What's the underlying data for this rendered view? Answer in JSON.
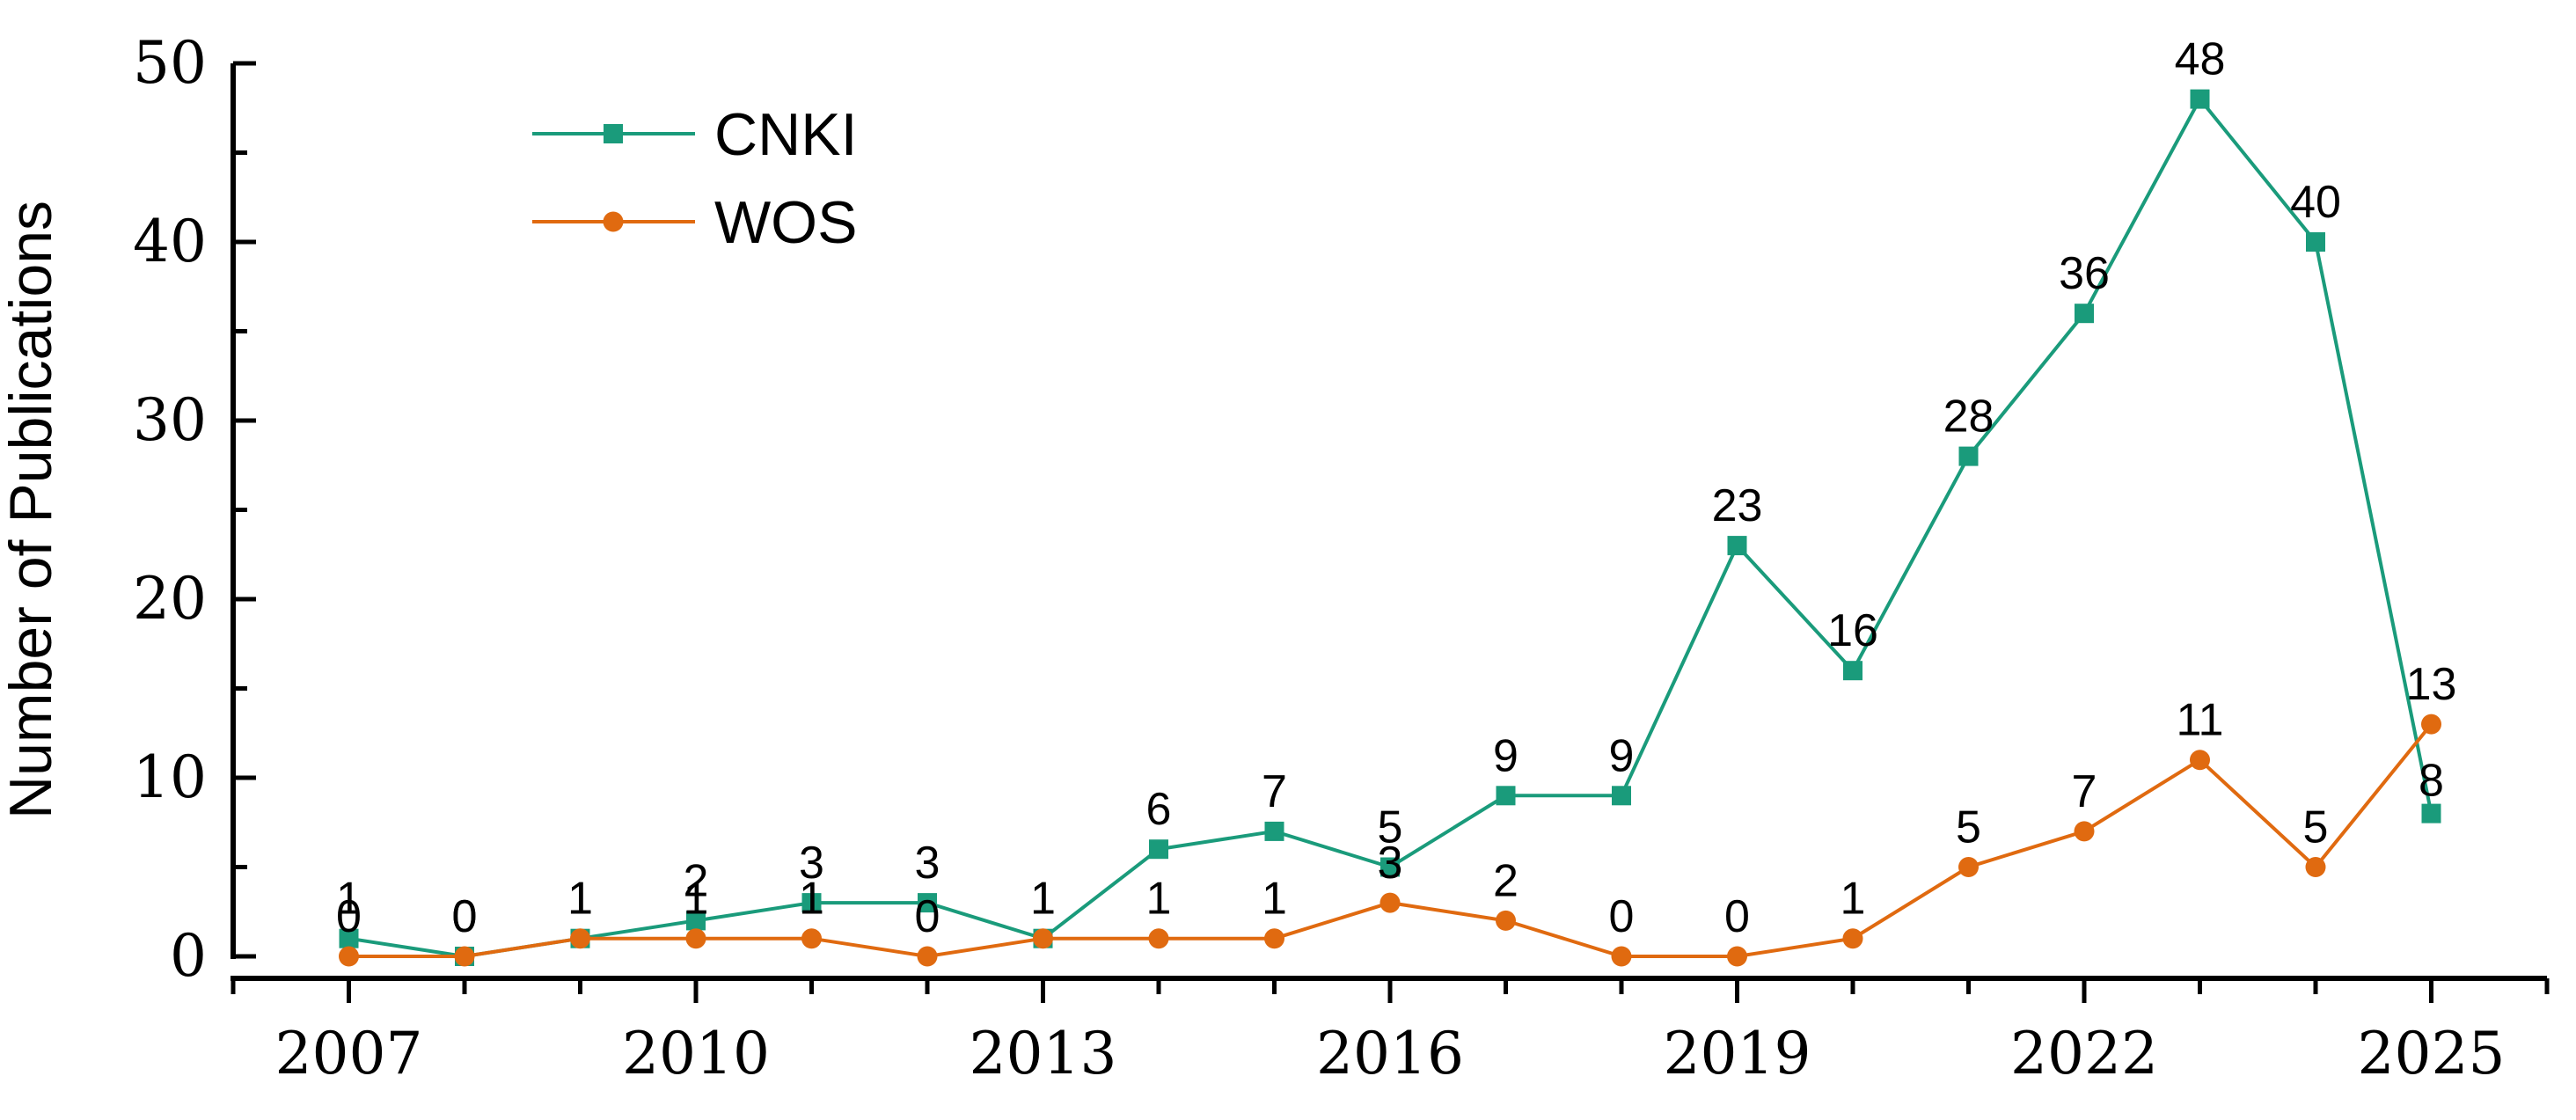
{
  "chart_data": {
    "type": "line",
    "xlabel": "",
    "ylabel": "Number of Publications",
    "ylim": [
      0,
      50
    ],
    "xlim": [
      2006,
      2026
    ],
    "x_ticks": [
      "2007",
      "2010",
      "2013",
      "2016",
      "2019",
      "2022",
      "2025"
    ],
    "y_ticks": [
      "0",
      "10",
      "20",
      "30",
      "40",
      "50"
    ],
    "x": [
      2007,
      2008,
      2009,
      2010,
      2011,
      2012,
      2013,
      2014,
      2015,
      2016,
      2017,
      2018,
      2019,
      2020,
      2021,
      2022,
      2023,
      2024,
      2025
    ],
    "series": [
      {
        "name": "CNKI",
        "marker": "square",
        "color": "#1a9b7b",
        "values": [
          1,
          0,
          1,
          2,
          3,
          3,
          1,
          6,
          7,
          5,
          9,
          9,
          23,
          16,
          28,
          36,
          48,
          40,
          8
        ]
      },
      {
        "name": "WOS",
        "marker": "circle",
        "color": "#e06a10",
        "values": [
          0,
          0,
          1,
          1,
          1,
          0,
          1,
          1,
          1,
          3,
          2,
          0,
          0,
          1,
          5,
          7,
          11,
          5,
          13
        ]
      }
    ],
    "legend_position": "top-left",
    "grid": false
  }
}
